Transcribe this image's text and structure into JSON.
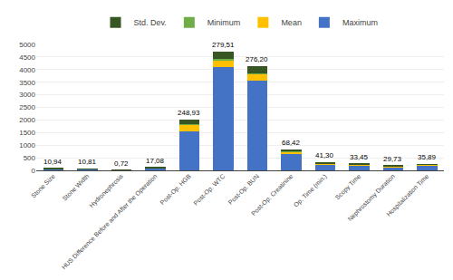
{
  "chart_data": {
    "type": "bar",
    "stacked": true,
    "categories": [
      "Stone Size",
      "Stone Width",
      "Hydronephrosis",
      "HUS Difference Before and After the Operation",
      "Post-Op. HGB",
      "Post-Op. WTC",
      "Post-Op. BUN",
      "Post-Op. Creatinine",
      "Op. Time (min.)",
      "Scopy Time",
      "Nephrostomy Duration",
      "Hospitalization Time"
    ],
    "series": [
      {
        "name": "Maximum",
        "color": "#4472C4",
        "values": [
          55,
          50,
          3,
          80,
          1550,
          4100,
          3550,
          680,
          220,
          185,
          130,
          190
        ]
      },
      {
        "name": "Mean",
        "color": "#FFC000",
        "values": [
          10.94,
          10.81,
          0.72,
          17.08,
          248.93,
          279.51,
          276.2,
          68.42,
          41.3,
          33.45,
          29.73,
          35.89
        ],
        "value_labels": [
          "10,94",
          "10,81",
          "0,72",
          "17,08",
          "248,93",
          "279,51",
          "276,20",
          "68,42",
          "41,30",
          "33,45",
          "29,73",
          "35,89"
        ]
      },
      {
        "name": "Minimum",
        "color": "#70AD47",
        "values": [
          2,
          2,
          0,
          0,
          20,
          50,
          20,
          0.4,
          20,
          10,
          1,
          1
        ]
      },
      {
        "name": "Std. Dev.",
        "color": "#375623",
        "values": [
          8,
          8,
          0.6,
          15,
          180,
          280,
          280,
          90,
          35,
          30,
          20,
          25
        ]
      }
    ],
    "data_labels": true,
    "ylim": [
      0,
      5000
    ],
    "yticks": [
      0,
      500,
      1000,
      1500,
      2000,
      2500,
      3000,
      3500,
      4000,
      4500,
      5000
    ],
    "grid": true,
    "legend": "top"
  }
}
